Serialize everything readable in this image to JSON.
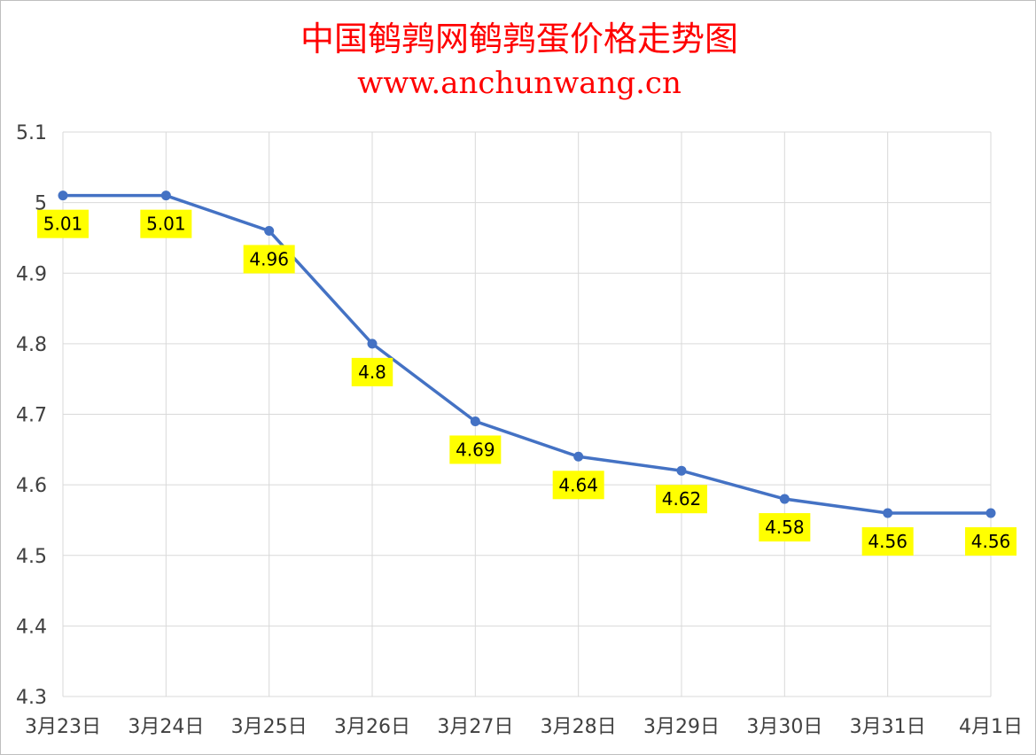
{
  "chart_data": {
    "type": "line",
    "title": "中国鹌鹑网鹌鹑蛋价格走势图",
    "subtitle": "www.anchunwang.cn",
    "categories": [
      "3月23日",
      "3月24日",
      "3月25日",
      "3月26日",
      "3月27日",
      "3月28日",
      "3月29日",
      "3月30日",
      "3月31日",
      "4月1日"
    ],
    "series": [
      {
        "values": [
          5.01,
          5.01,
          4.96,
          4.8,
          4.69,
          4.64,
          4.62,
          4.58,
          4.56,
          4.56
        ]
      }
    ],
    "data_labels": [
      "5.01",
      "5.01",
      "4.96",
      "4.8",
      "4.69",
      "4.64",
      "4.62",
      "4.58",
      "4.56",
      "4.56"
    ],
    "y_ticks": [
      "4.3",
      "4.4",
      "4.5",
      "4.6",
      "4.7",
      "4.8",
      "4.9",
      "5",
      "5.1"
    ],
    "ylim": [
      4.3,
      5.1
    ],
    "grid": true,
    "colors": {
      "title": "#ff0000",
      "line": "#4472c4",
      "grid": "#d9d9d9",
      "label_bg": "#ffff00",
      "tick_text": "#404040"
    }
  }
}
